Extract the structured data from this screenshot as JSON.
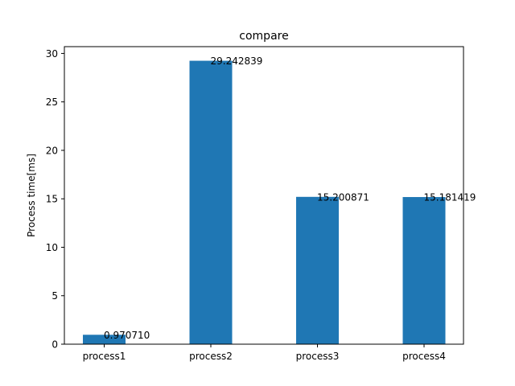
{
  "chart_data": {
    "type": "bar",
    "title": "compare",
    "xlabel": "",
    "ylabel": "Process time[ms]",
    "categories": [
      "process1",
      "process2",
      "process3",
      "process4"
    ],
    "values": [
      0.97071,
      29.242839,
      15.200871,
      15.181419
    ],
    "data_labels": [
      "0.970710",
      "29.242839",
      "15.200871",
      "15.181419"
    ],
    "ylim": [
      0,
      30.7
    ],
    "yticks": [
      0,
      5,
      10,
      15,
      20,
      25,
      30
    ],
    "grid": false,
    "bar_color": "#1f77b4"
  }
}
